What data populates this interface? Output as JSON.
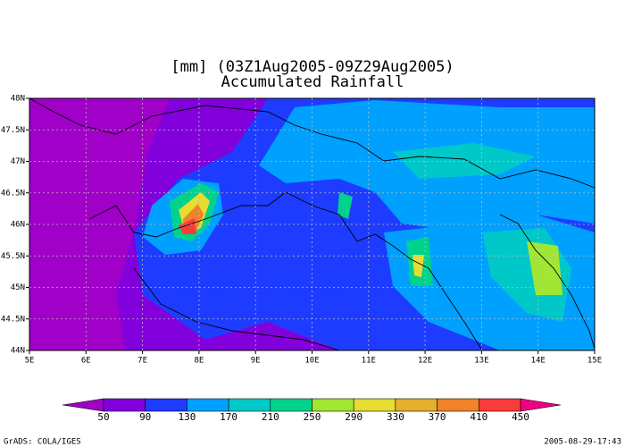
{
  "header": {
    "title": "[mm] (03Z1Aug2005-09Z29Aug2005)",
    "subtitle": "Accumulated Rainfall"
  },
  "map": {
    "lon_labels": [
      "5E",
      "6E",
      "7E",
      "8E",
      "9E",
      "10E",
      "11E",
      "12E",
      "13E",
      "14E",
      "15E"
    ],
    "lat_labels": [
      "44N",
      "44.5N",
      "45N",
      "45.5N",
      "46N",
      "46.5N",
      "47N",
      "47.5N",
      "48N"
    ]
  },
  "colorbar": {
    "levels": [
      "50",
      "90",
      "130",
      "170",
      "210",
      "250",
      "290",
      "330",
      "370",
      "410",
      "450"
    ],
    "colors": [
      "#a000c8",
      "#8200dc",
      "#1e3cff",
      "#00a0ff",
      "#00c8c8",
      "#00d28c",
      "#a0e632",
      "#e6dc32",
      "#e6af2d",
      "#f08228",
      "#fa3c3c",
      "#f00082"
    ]
  },
  "footer": {
    "left": "GrADS: COLA/IGES",
    "right": "2005-08-29-17:43"
  }
}
